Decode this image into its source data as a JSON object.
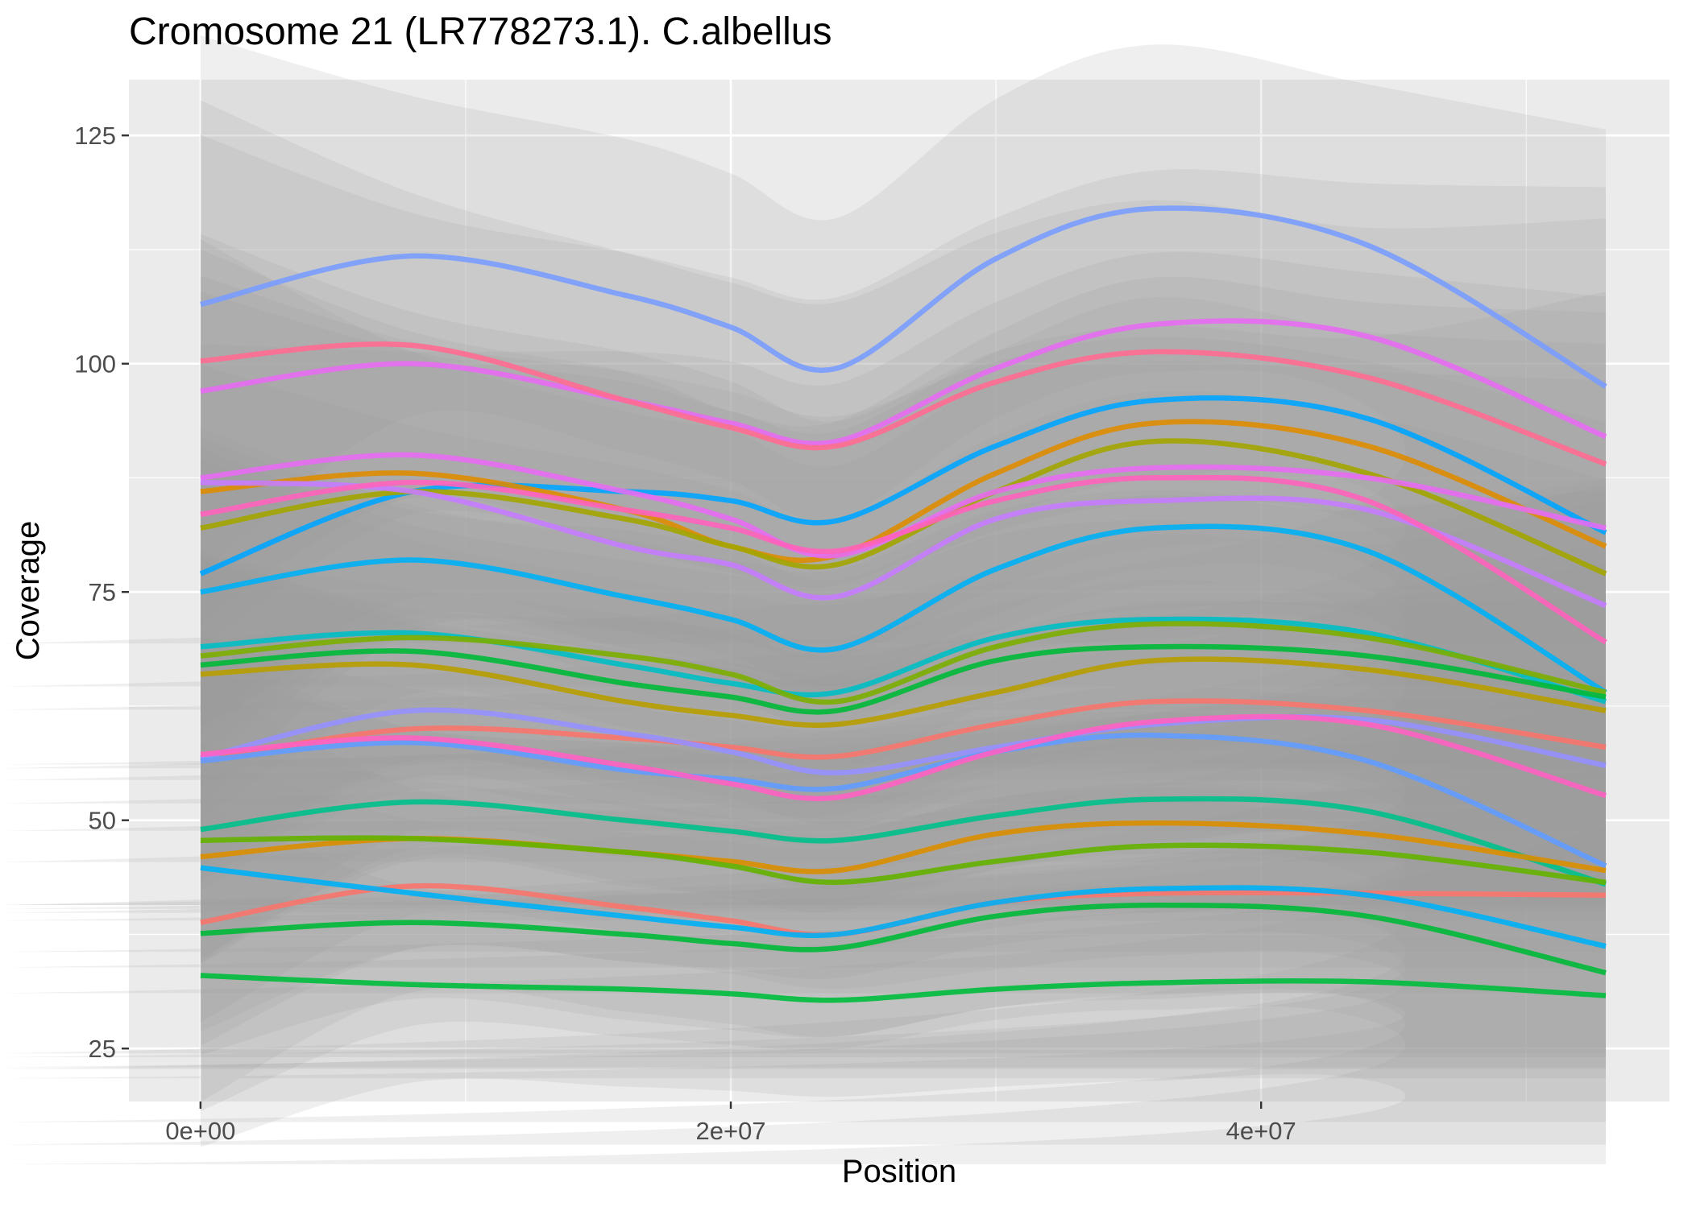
{
  "chart_data": {
    "type": "line",
    "title": "Cromosome 21 (LR778273.1). C.albellus",
    "xlabel": "Position",
    "ylabel": "Coverage",
    "xlim": [
      -2700000,
      55400000
    ],
    "ylim": [
      19.2,
      131.1
    ],
    "x_ticks": [
      0,
      20000000,
      40000000
    ],
    "x_tick_labels": [
      "0e+00",
      "2e+07",
      "4e+07"
    ],
    "y_ticks": [
      25,
      50,
      75,
      100,
      125
    ],
    "y_tick_labels": [
      "25",
      "50",
      "75",
      "100",
      "125"
    ],
    "grid": true,
    "legend": "none",
    "x": [
      0,
      8000000,
      16000000,
      20000000,
      24000000,
      30000000,
      36000000,
      44000000,
      53000000
    ],
    "series": [
      {
        "color": "#7A9DFF",
        "values": [
          106.5,
          111.8,
          107.5,
          104.0,
          99.5,
          111.5,
          117.0,
          113.0,
          97.5
        ]
      },
      {
        "color": "#E76BF3",
        "values": [
          97.0,
          100.0,
          96.0,
          93.5,
          91.5,
          99.5,
          104.3,
          103.0,
          92.0
        ]
      },
      {
        "color": "#FF6C91",
        "values": [
          100.3,
          102.0,
          96.0,
          93.0,
          91.0,
          98.0,
          101.3,
          98.5,
          89.0
        ]
      },
      {
        "color": "#00A5FF",
        "values": [
          77.0,
          86.0,
          86.0,
          85.0,
          82.8,
          91.0,
          96.0,
          94.0,
          81.5
        ]
      },
      {
        "color": "#DE8C00",
        "values": [
          86.0,
          88.0,
          84.0,
          80.0,
          79.0,
          88.0,
          93.5,
          91.0,
          80.0
        ]
      },
      {
        "color": "#A3A500",
        "values": [
          82.0,
          86.0,
          83.0,
          80.0,
          78.0,
          86.0,
          91.5,
          88.0,
          77.0
        ]
      },
      {
        "color": "#E76BF3",
        "values": [
          87.5,
          90.0,
          86.0,
          83.0,
          79.0,
          86.0,
          88.6,
          87.5,
          82.0
        ]
      },
      {
        "color": "#C77CFF",
        "values": [
          87.0,
          86.0,
          80.0,
          78.0,
          74.5,
          83.0,
          85.0,
          84.0,
          73.5
        ]
      },
      {
        "color": "#FF62BC",
        "values": [
          83.5,
          87.0,
          84.0,
          82.0,
          79.5,
          85.0,
          87.5,
          85.0,
          69.5
        ]
      },
      {
        "color": "#00B0F6",
        "values": [
          75.0,
          78.5,
          74.5,
          72.0,
          68.8,
          77.5,
          82.0,
          79.5,
          64.0
        ]
      },
      {
        "color": "#00BFC4",
        "values": [
          69.0,
          70.5,
          67.0,
          65.0,
          64.0,
          70.0,
          72.0,
          70.5,
          63.0
        ]
      },
      {
        "color": "#7CAE00",
        "values": [
          68.0,
          70.0,
          68.0,
          66.0,
          63.0,
          69.0,
          71.5,
          70.0,
          64.0
        ]
      },
      {
        "color": "#00BA38",
        "values": [
          67.0,
          68.5,
          65.0,
          63.5,
          62.0,
          67.5,
          69.0,
          68.0,
          63.5
        ]
      },
      {
        "color": "#B79F00",
        "values": [
          66.0,
          67.0,
          63.0,
          61.5,
          60.5,
          64.0,
          67.5,
          66.5,
          62.0
        ]
      },
      {
        "color": "#F8766D",
        "values": [
          56.5,
          60.0,
          59.0,
          58.0,
          57.0,
          60.5,
          63.0,
          62.0,
          58.0
        ]
      },
      {
        "color": "#9590FF",
        "values": [
          56.8,
          62.0,
          59.5,
          57.5,
          55.2,
          58.0,
          60.5,
          61.0,
          56.0
        ]
      },
      {
        "color": "#619CFF",
        "values": [
          56.5,
          58.5,
          55.5,
          54.5,
          53.5,
          57.5,
          59.3,
          56.5,
          45.0
        ]
      },
      {
        "color": "#FF61C3",
        "values": [
          57.2,
          59.0,
          56.0,
          54.0,
          52.5,
          57.5,
          60.8,
          60.5,
          52.7
        ]
      },
      {
        "color": "#00C08B",
        "values": [
          49.0,
          52.0,
          50.0,
          48.8,
          47.8,
          50.5,
          52.3,
          51.0,
          43.0
        ]
      },
      {
        "color": "#DB8E00",
        "values": [
          46.0,
          48.0,
          46.5,
          45.5,
          44.5,
          48.5,
          49.7,
          48.5,
          44.5
        ]
      },
      {
        "color": "#64B200",
        "values": [
          47.8,
          48.0,
          46.5,
          45.0,
          43.2,
          45.5,
          47.2,
          46.5,
          43.2
        ]
      },
      {
        "color": "#F8766D",
        "values": [
          38.8,
          42.8,
          40.5,
          39.0,
          37.5,
          41.0,
          42.0,
          42.0,
          41.8
        ]
      },
      {
        "color": "#00B0F6",
        "values": [
          44.8,
          42.0,
          39.5,
          38.3,
          37.5,
          41.0,
          42.5,
          41.8,
          36.2
        ]
      },
      {
        "color": "#00BA38",
        "values": [
          37.6,
          38.8,
          37.5,
          36.5,
          36.0,
          39.5,
          40.7,
          39.5,
          33.3
        ]
      },
      {
        "color": "#00BD3C",
        "values": [
          33.0,
          32.0,
          31.5,
          31.0,
          30.3,
          31.5,
          32.2,
          32.3,
          30.8
        ]
      }
    ]
  }
}
